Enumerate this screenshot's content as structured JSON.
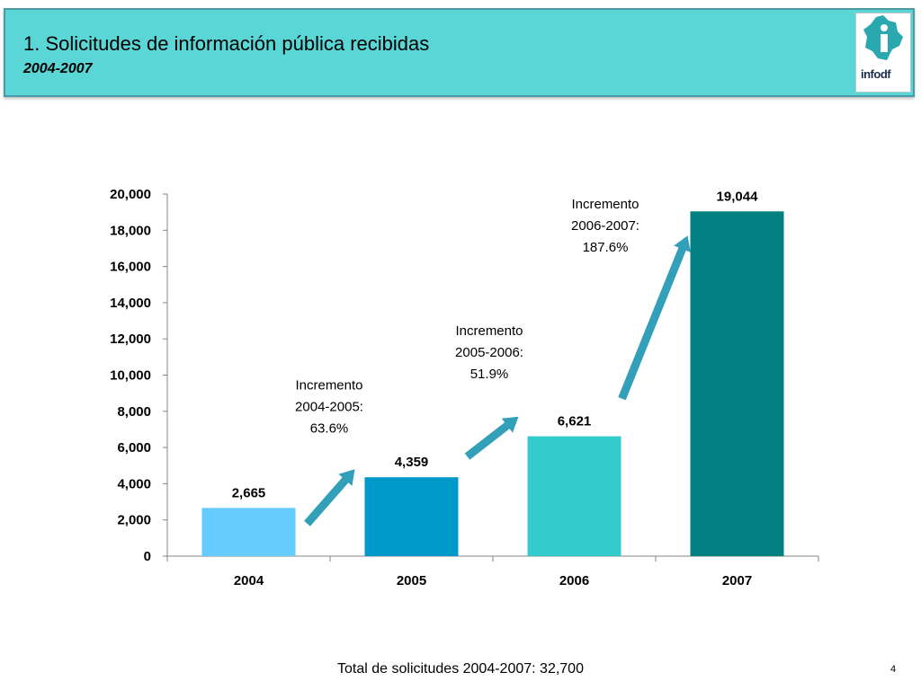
{
  "header": {
    "title": "1. Solicitudes de información pública recibidas",
    "subtitle": "2004-2007",
    "logo_text": "infodf"
  },
  "chart_data": {
    "type": "bar",
    "categories": [
      "2004",
      "2005",
      "2006",
      "2007"
    ],
    "values": [
      2665,
      4359,
      6621,
      19044
    ],
    "value_labels": [
      "2,665",
      "4,359",
      "6,621",
      "19,044"
    ],
    "bar_colors": [
      "#66ccff",
      "#0099cc",
      "#33cccc",
      "#008080"
    ],
    "ylim": [
      0,
      20000
    ],
    "yticks": [
      0,
      2000,
      4000,
      6000,
      8000,
      10000,
      12000,
      14000,
      16000,
      18000,
      20000
    ],
    "ytick_labels": [
      "0",
      "2,000",
      "4,000",
      "6,000",
      "8,000",
      "10,000",
      "12,000",
      "14,000",
      "16,000",
      "18,000",
      "20,000"
    ],
    "grid": false,
    "arrow_color": "#31a0b8",
    "annotations": [
      {
        "lines": [
          "Incremento",
          "2004-2005:",
          "63.6%"
        ],
        "between": [
          "2004",
          "2005"
        ]
      },
      {
        "lines": [
          "Incremento",
          "2005-2006:",
          "51.9%"
        ],
        "between": [
          "2005",
          "2006"
        ]
      },
      {
        "lines": [
          "Incremento",
          "2006-2007:",
          "187.6%"
        ],
        "between": [
          "2006",
          "2007"
        ]
      }
    ]
  },
  "footer": {
    "total_text": "Total de solicitudes 2004-2007: 32,700",
    "page_number": "4"
  }
}
